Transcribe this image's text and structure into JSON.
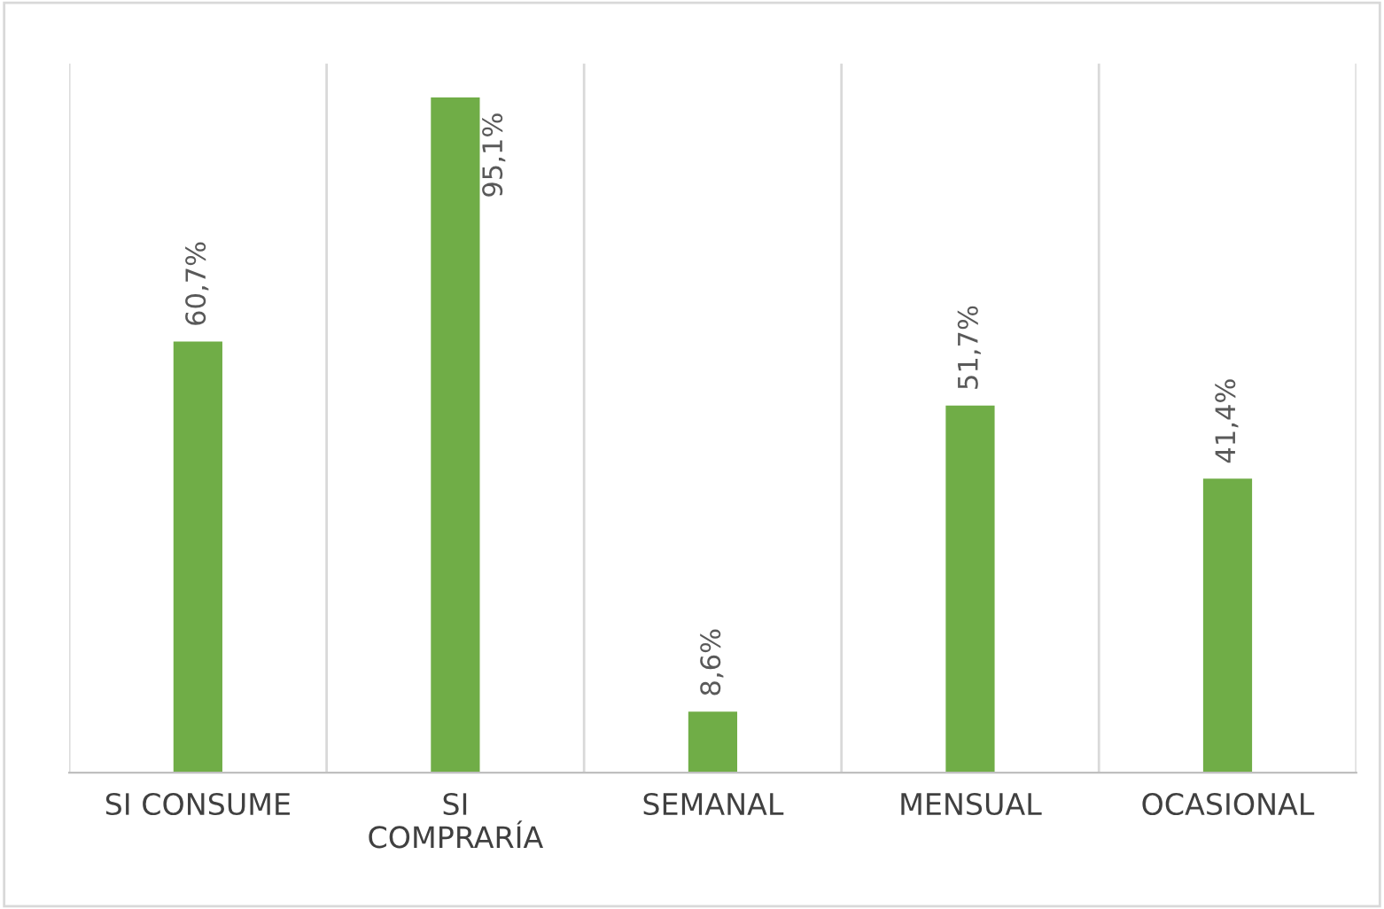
{
  "chart_data": {
    "type": "bar",
    "categories": [
      "SI CONSUME",
      "SI\nCOMPRARÍA",
      "SEMANAL",
      "MENSUAL",
      "OCASIONAL"
    ],
    "values": [
      60.7,
      95.1,
      8.6,
      51.7,
      41.4
    ],
    "value_labels": [
      "60,7%",
      "95,1%",
      "8,6%",
      "51,7%",
      "41,4%"
    ],
    "color": "#70ad47",
    "grid": "x"
  }
}
